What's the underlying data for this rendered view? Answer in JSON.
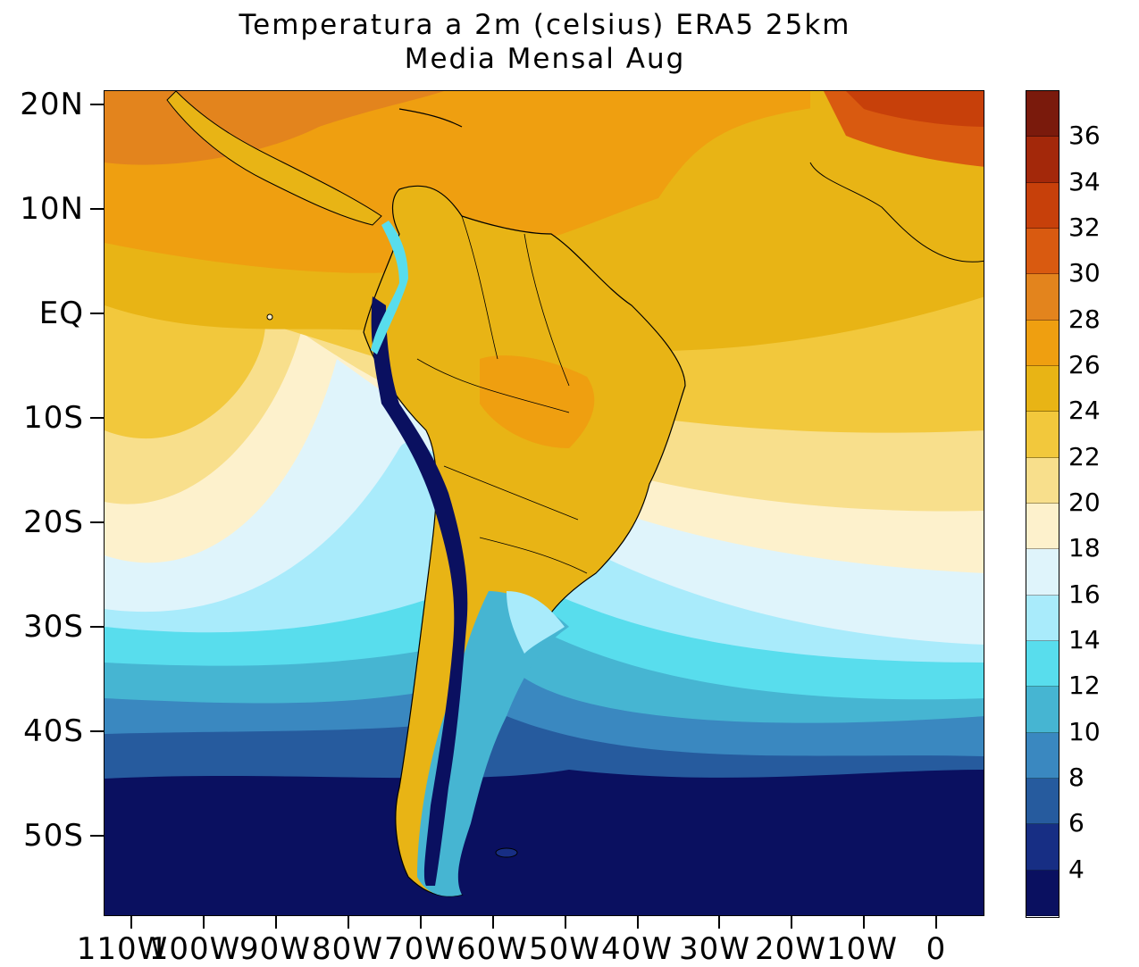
{
  "title": {
    "line1": "Temperatura a 2m (celsius) ERA5  25km",
    "line2": "Media Mensal Aug"
  },
  "axes": {
    "lat_labels": [
      "20N",
      "10N",
      "EQ",
      "10S",
      "20S",
      "30S",
      "40S",
      "50S"
    ],
    "lon_labels": [
      "110W",
      "100W",
      "90W",
      "80W",
      "70W",
      "60W",
      "50W",
      "40W",
      "30W",
      "20W",
      "10W",
      "0"
    ]
  },
  "colorbar": {
    "labels": [
      "36",
      "34",
      "32",
      "30",
      "28",
      "26",
      "24",
      "22",
      "20",
      "18",
      "16",
      "14",
      "12",
      "10",
      "8",
      "6",
      "4"
    ],
    "colors_top_to_bottom": [
      "#7a1a0c",
      "#a3280a",
      "#c7400a",
      "#d95a10",
      "#e3841d",
      "#ef9f10",
      "#e8b415",
      "#f2c83c",
      "#f8df8c",
      "#fdf1cc",
      "#dff4fb",
      "#a9ebfb",
      "#58dded",
      "#46b5d2",
      "#3a88c0",
      "#265b9e",
      "#172e84",
      "#0a1060"
    ]
  },
  "map": {
    "region": "South America, Atlantic and West Africa",
    "colors": {
      "ocean_north": "#ef9f10",
      "land_brazil": "#e8b415",
      "andes_cold": "#0a1060",
      "coastline": "#000000"
    }
  }
}
